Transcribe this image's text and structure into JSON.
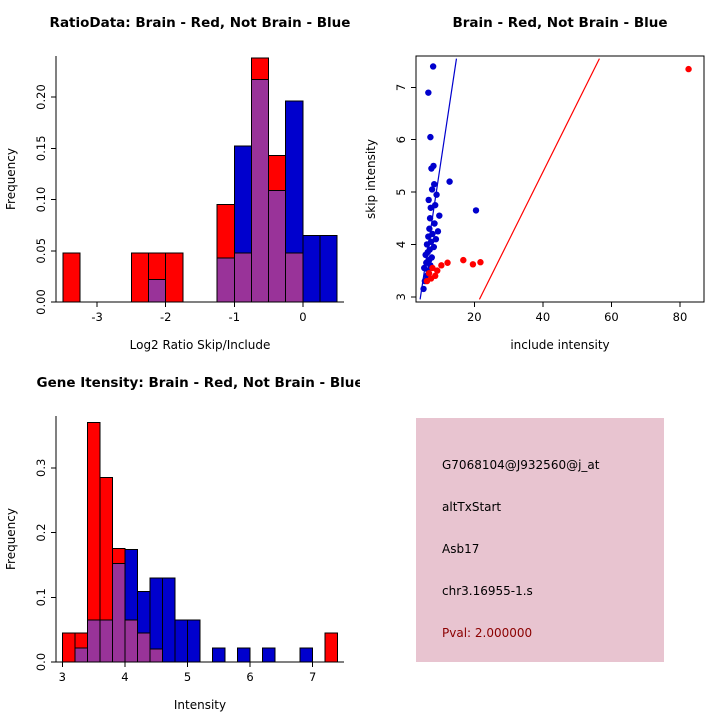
{
  "page": {
    "background": "#ffffff"
  },
  "colors": {
    "brain_red": "#FF0000",
    "not_brain_blue": "#0000CD",
    "overlap_purple": "#993399",
    "info_box_pink": "#E8C4D0",
    "pval_red": "#8B0000",
    "axis_black": "#000000"
  },
  "chart_data": [
    {
      "id": "ratio-histogram",
      "type": "bar",
      "title": "RatioData: Brain - Red, Not Brain - Blue",
      "xlabel": "Log2 Ratio Skip/Include",
      "ylabel": "Frequency",
      "bin_start": -3.5,
      "bin_width": 0.25,
      "xlim": [
        -3.6,
        0.6
      ],
      "ylim": [
        0,
        0.24
      ],
      "xticks": [
        -3,
        -2,
        -1,
        0
      ],
      "xtick_labels": [
        "-3",
        "-2",
        "-1",
        "0"
      ],
      "yticks": [
        0,
        0.05,
        0.1,
        0.15,
        0.2
      ],
      "ytick_labels": [
        "0.00",
        "0.05",
        "0.10",
        "0.15",
        "0.20"
      ],
      "box": false,
      "overlap_color": "#993399",
      "series": [
        {
          "name": "Brain",
          "color": "#FF0000",
          "values": [
            0.048,
            0,
            0,
            0,
            0.048,
            0.048,
            0.048,
            0,
            0,
            0.095,
            0.048,
            0.238,
            0.143,
            0.048,
            0,
            0
          ]
        },
        {
          "name": "Not Brain",
          "color": "#0000CD",
          "values": [
            0,
            0,
            0,
            0,
            0,
            0.022,
            0,
            0,
            0,
            0.043,
            0.152,
            0.217,
            0.109,
            0.196,
            0.065,
            0.065
          ]
        }
      ]
    },
    {
      "id": "intensity-scatter",
      "type": "scatter",
      "title": "Brain - Red, Not Brain - Blue",
      "xlabel": "include intensity",
      "ylabel": "skip intensity",
      "xlim": [
        3,
        87
      ],
      "ylim": [
        2.9,
        7.6
      ],
      "xticks": [
        20,
        40,
        60,
        80
      ],
      "xtick_labels": [
        "20",
        "40",
        "60",
        "80"
      ],
      "yticks": [
        3,
        4,
        5,
        6,
        7
      ],
      "ytick_labels": [
        "3",
        "4",
        "5",
        "6",
        "7"
      ],
      "box": true,
      "series": [
        {
          "name": "Not Brain",
          "color": "#0000CD",
          "line": [
            [
              4.2,
              2.95
            ],
            [
              14.8,
              7.55
            ]
          ],
          "points": [
            [
              5.2,
              3.15
            ],
            [
              5.6,
              3.3
            ],
            [
              6.1,
              3.4
            ],
            [
              6.6,
              3.5
            ],
            [
              5.4,
              3.55
            ],
            [
              7.2,
              3.6
            ],
            [
              6.0,
              3.65
            ],
            [
              6.8,
              3.7
            ],
            [
              7.6,
              3.75
            ],
            [
              5.8,
              3.8
            ],
            [
              6.4,
              3.85
            ],
            [
              7.0,
              3.9
            ],
            [
              8.2,
              3.95
            ],
            [
              6.2,
              4.0
            ],
            [
              7.4,
              4.05
            ],
            [
              8.8,
              4.1
            ],
            [
              6.6,
              4.15
            ],
            [
              7.8,
              4.2
            ],
            [
              9.4,
              4.25
            ],
            [
              6.9,
              4.3
            ],
            [
              8.4,
              4.4
            ],
            [
              7.1,
              4.5
            ],
            [
              9.8,
              4.55
            ],
            [
              20.5,
              4.65
            ],
            [
              7.3,
              4.7
            ],
            [
              8.6,
              4.75
            ],
            [
              6.7,
              4.85
            ],
            [
              9.0,
              4.95
            ],
            [
              7.7,
              5.05
            ],
            [
              8.3,
              5.15
            ],
            [
              12.8,
              5.2
            ],
            [
              7.5,
              5.45
            ],
            [
              8.1,
              5.5
            ],
            [
              7.2,
              6.05
            ],
            [
              6.6,
              6.9
            ],
            [
              8.0,
              7.4
            ]
          ]
        },
        {
          "name": "Brain",
          "color": "#FF0000",
          "line": [
            [
              21.5,
              2.95
            ],
            [
              56.5,
              7.55
            ]
          ],
          "points": [
            [
              6.2,
              3.3
            ],
            [
              7.4,
              3.35
            ],
            [
              8.6,
              3.4
            ],
            [
              6.8,
              3.45
            ],
            [
              9.2,
              3.5
            ],
            [
              7.8,
              3.55
            ],
            [
              10.4,
              3.6
            ],
            [
              12.2,
              3.65
            ],
            [
              16.8,
              3.7
            ],
            [
              19.6,
              3.62
            ],
            [
              21.8,
              3.66
            ],
            [
              82.5,
              7.35
            ]
          ]
        }
      ]
    },
    {
      "id": "gene-intensity-histogram",
      "type": "bar",
      "title": "Gene Itensity: Brain - Red, Not Brain - Blue",
      "xlabel": "Intensity",
      "ylabel": "Frequency",
      "bin_start": 3.0,
      "bin_width": 0.2,
      "xlim": [
        2.9,
        7.5
      ],
      "ylim": [
        0,
        0.38
      ],
      "xticks": [
        3,
        4,
        5,
        6,
        7
      ],
      "xtick_labels": [
        "3",
        "4",
        "5",
        "6",
        "7"
      ],
      "yticks": [
        0,
        0.1,
        0.2,
        0.3
      ],
      "ytick_labels": [
        "0.0",
        "0.1",
        "0.2",
        "0.3"
      ],
      "box": false,
      "overlap_color": "#993399",
      "series": [
        {
          "name": "Brain",
          "color": "#FF0000",
          "values": [
            0.045,
            0.045,
            0.37,
            0.285,
            0.175,
            0.065,
            0.045,
            0.02,
            0,
            0,
            0,
            0,
            0,
            0,
            0,
            0,
            0,
            0,
            0,
            0,
            0,
            0.045
          ]
        },
        {
          "name": "Not Brain",
          "color": "#0000CD",
          "values": [
            0,
            0.022,
            0.065,
            0.065,
            0.152,
            0.174,
            0.109,
            0.13,
            0.13,
            0.065,
            0.065,
            0,
            0.022,
            0,
            0.022,
            0,
            0.022,
            0,
            0,
            0.022,
            0,
            0
          ]
        }
      ]
    }
  ],
  "info_panel": {
    "background": "#E8C4D0",
    "lines": [
      "G7068104@J932560@j_at",
      "altTxStart",
      "Asb17",
      "chr3.16955-1.s"
    ],
    "pval": "Pval: 2.000000",
    "pval_color": "#8B0000"
  }
}
